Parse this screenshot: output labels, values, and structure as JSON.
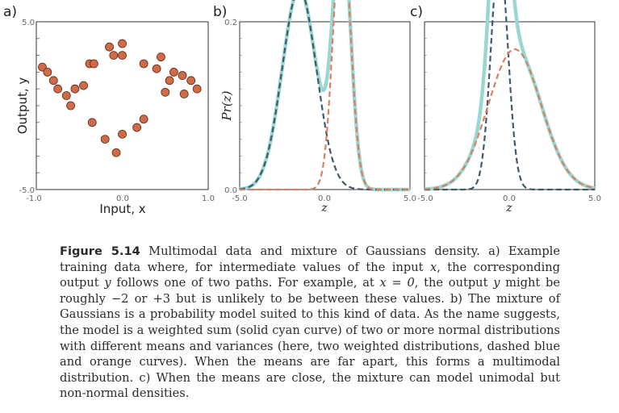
{
  "chart_data": [
    {
      "panel_label": "a)",
      "type": "scatter",
      "xlabel": "Input, x",
      "ylabel": "Output, y",
      "xlim": [
        -1.0,
        1.0
      ],
      "ylim": [
        -5.0,
        5.0
      ],
      "x_ticks": [
        "-1.0",
        "0.0",
        "1.0"
      ],
      "y_ticks": [
        "-5.0",
        "5.0"
      ],
      "marker_color": "#d06b47",
      "points": [
        {
          "x": -0.93,
          "y": 2.3
        },
        {
          "x": -0.87,
          "y": 2.0
        },
        {
          "x": -0.8,
          "y": 1.5
        },
        {
          "x": -0.75,
          "y": 1.0
        },
        {
          "x": -0.65,
          "y": 0.6
        },
        {
          "x": -0.6,
          "y": 0.0
        },
        {
          "x": -0.55,
          "y": 1.0
        },
        {
          "x": -0.45,
          "y": 1.2
        },
        {
          "x": -0.38,
          "y": 2.5
        },
        {
          "x": -0.33,
          "y": 2.5
        },
        {
          "x": -0.35,
          "y": -1.0
        },
        {
          "x": -0.2,
          "y": -2.0
        },
        {
          "x": -0.15,
          "y": 3.5
        },
        {
          "x": -0.1,
          "y": 3.0
        },
        {
          "x": -0.07,
          "y": -2.8
        },
        {
          "x": 0.0,
          "y": -1.7
        },
        {
          "x": 0.0,
          "y": 3.7
        },
        {
          "x": 0.0,
          "y": 3.0
        },
        {
          "x": 0.17,
          "y": -1.3
        },
        {
          "x": 0.25,
          "y": 2.5
        },
        {
          "x": 0.25,
          "y": -0.8
        },
        {
          "x": 0.4,
          "y": 2.2
        },
        {
          "x": 0.45,
          "y": 2.9
        },
        {
          "x": 0.5,
          "y": 0.8
        },
        {
          "x": 0.55,
          "y": 1.5
        },
        {
          "x": 0.6,
          "y": 2.0
        },
        {
          "x": 0.7,
          "y": 1.8
        },
        {
          "x": 0.72,
          "y": 0.7
        },
        {
          "x": 0.8,
          "y": 1.5
        },
        {
          "x": 0.87,
          "y": 1.0
        }
      ]
    },
    {
      "panel_label": "b)",
      "type": "line",
      "xlabel": "z",
      "ylabel": "Pr(z)",
      "xlim": [
        -5.0,
        5.0
      ],
      "ylim": [
        0.0,
        0.2
      ],
      "x_ticks": [
        "-5.0",
        "0.0",
        "5.0"
      ],
      "y_ticks": [
        "0.0",
        "0.2"
      ],
      "series": [
        {
          "style": "solid",
          "color": "#9ad7d2",
          "role": "mixture"
        },
        {
          "style": "dashed",
          "color": "#3e5a6e",
          "weight": 0.6,
          "mean": -1.5,
          "sd": 1.0
        },
        {
          "style": "dashed",
          "color": "#d9805f",
          "weight": 0.4,
          "mean": 1.0,
          "sd": 0.5
        }
      ]
    },
    {
      "panel_label": "c)",
      "type": "line",
      "xlabel": "z",
      "ylabel": "",
      "xlim": [
        -5.0,
        5.0
      ],
      "ylim": [
        0.0,
        0.2
      ],
      "x_ticks": [
        "-5.0",
        "0.0",
        "5.0"
      ],
      "y_ticks": [],
      "series": [
        {
          "style": "solid",
          "color": "#9ad7d2",
          "role": "mixture"
        },
        {
          "style": "dashed",
          "color": "#3e5a6e",
          "weight": 0.35,
          "mean": -0.6,
          "sd": 0.5
        },
        {
          "style": "dashed",
          "color": "#d9805f",
          "weight": 0.65,
          "mean": 0.3,
          "sd": 1.55
        }
      ]
    }
  ],
  "caption": {
    "label": "Figure 5.14",
    "text_1": " Multimodal data and mixture of Gaussians density.  a) Example training data where, for intermediate values of the input ",
    "math_x1": "x",
    "text_2": ", the corresponding output ",
    "math_y1": "y",
    "text_3": " follows one of two paths.  For example, at ",
    "math_x0": "x = 0",
    "text_4": ", the output ",
    "math_y2": "y",
    "text_5": " might be roughly −2 or +3 but is unlikely to be between these values.  b) The mixture of Gaussians is a probability model suited to this kind of data.  As the name suggests, the model is a weighted sum (solid cyan curve) of two or more normal distributions with different means and variances (here, two weighted distributions, dashed blue and orange curves).  When the means are far apart, this forms a multimodal distribution.  c) When the means are close, the mixture can model unimodal but non-normal densities."
  }
}
